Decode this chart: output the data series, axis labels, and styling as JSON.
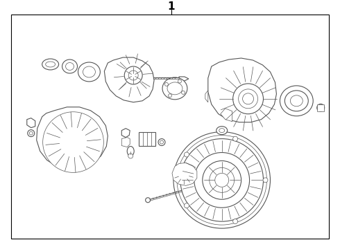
{
  "title": "1",
  "bg_color": "#ffffff",
  "border_color": "#000000",
  "line_color": "#555555",
  "title_fontsize": 11,
  "fig_width": 4.9,
  "fig_height": 3.6,
  "dpi": 100
}
